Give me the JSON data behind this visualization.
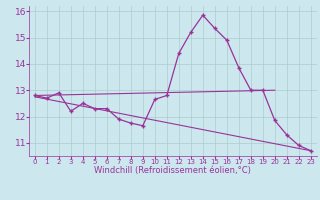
{
  "x": [
    0,
    1,
    2,
    3,
    4,
    5,
    6,
    7,
    8,
    9,
    10,
    11,
    12,
    13,
    14,
    15,
    16,
    17,
    18,
    19,
    20,
    21,
    22,
    23
  ],
  "line1": [
    12.8,
    12.7,
    12.9,
    12.2,
    12.5,
    12.3,
    12.3,
    11.9,
    11.75,
    11.65,
    12.65,
    12.8,
    14.4,
    15.2,
    15.85,
    15.35,
    14.9,
    13.85,
    13.0,
    13.0,
    11.85,
    11.3,
    10.9,
    10.7
  ],
  "line2_x": [
    0,
    20
  ],
  "line2_y": [
    12.8,
    13.0
  ],
  "line3_x": [
    0,
    23
  ],
  "line3_y": [
    12.75,
    10.7
  ],
  "line_color": "#993399",
  "bg_color": "#cce8ee",
  "grid_color": "#aacccc",
  "xlabel": "Windchill (Refroidissement éolien,°C)",
  "xlim": [
    -0.5,
    23.5
  ],
  "ylim": [
    10.5,
    16.2
  ],
  "yticks": [
    11,
    12,
    13,
    14,
    15,
    16
  ],
  "xticks": [
    0,
    1,
    2,
    3,
    4,
    5,
    6,
    7,
    8,
    9,
    10,
    11,
    12,
    13,
    14,
    15,
    16,
    17,
    18,
    19,
    20,
    21,
    22,
    23
  ]
}
